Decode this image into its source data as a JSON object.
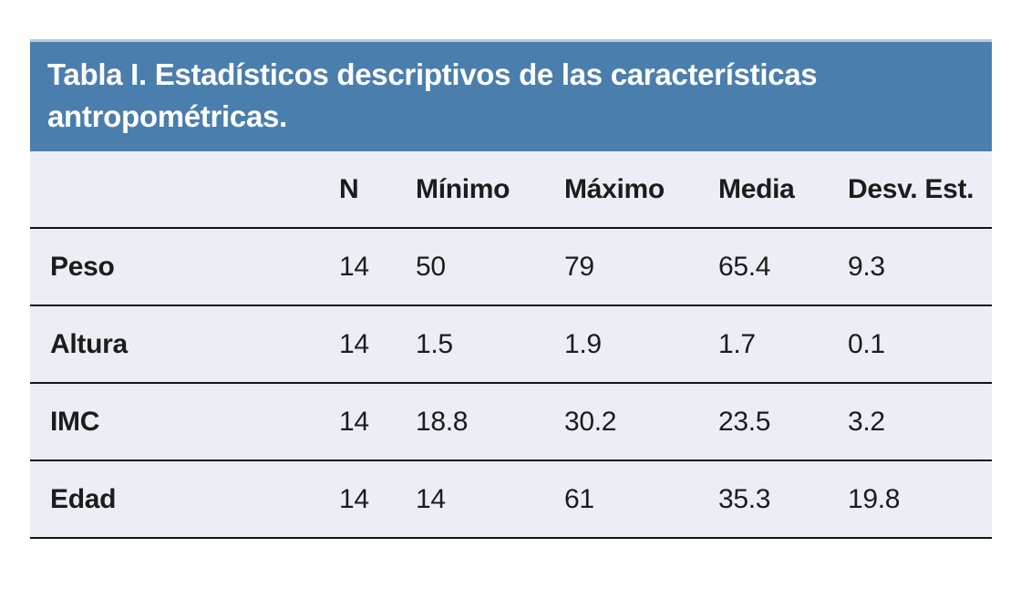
{
  "table": {
    "title": "Tabla I. Estadísticos descriptivos de las características antropométricas.",
    "columns": [
      "N",
      "Mínimo",
      "Máximo",
      "Media",
      "Desv. Est."
    ],
    "rows": [
      {
        "label": "Peso",
        "values": [
          "14",
          "50",
          "79",
          "65.4",
          "9.3"
        ]
      },
      {
        "label": "Altura",
        "values": [
          "14",
          "1.5",
          "1.9",
          "1.7",
          "0.1"
        ]
      },
      {
        "label": "IMC",
        "values": [
          "14",
          "18.8",
          "30.2",
          "23.5",
          "3.2"
        ]
      },
      {
        "label": "Edad",
        "values": [
          "14",
          "14",
          "61",
          "35.3",
          "19.8"
        ]
      }
    ],
    "colors": {
      "header_bg": "#4A7EAC",
      "header_top_border": "#b9cbdd",
      "row_bg": "#EBEEF5",
      "divider": "#131313",
      "title_text": "#ffffff",
      "body_text": "#1c1c1c"
    }
  },
  "chart_data": {
    "type": "table",
    "title": "Tabla I. Estadísticos descriptivos de las características antropométricas.",
    "columns": [
      "",
      "N",
      "Mínimo",
      "Máximo",
      "Media",
      "Desv. Est."
    ],
    "rows": [
      [
        "Peso",
        14,
        50,
        79,
        65.4,
        9.3
      ],
      [
        "Altura",
        14,
        1.5,
        1.9,
        1.7,
        0.1
      ],
      [
        "IMC",
        14,
        18.8,
        30.2,
        23.5,
        3.2
      ],
      [
        "Edad",
        14,
        14,
        61,
        35.3,
        19.8
      ]
    ]
  }
}
